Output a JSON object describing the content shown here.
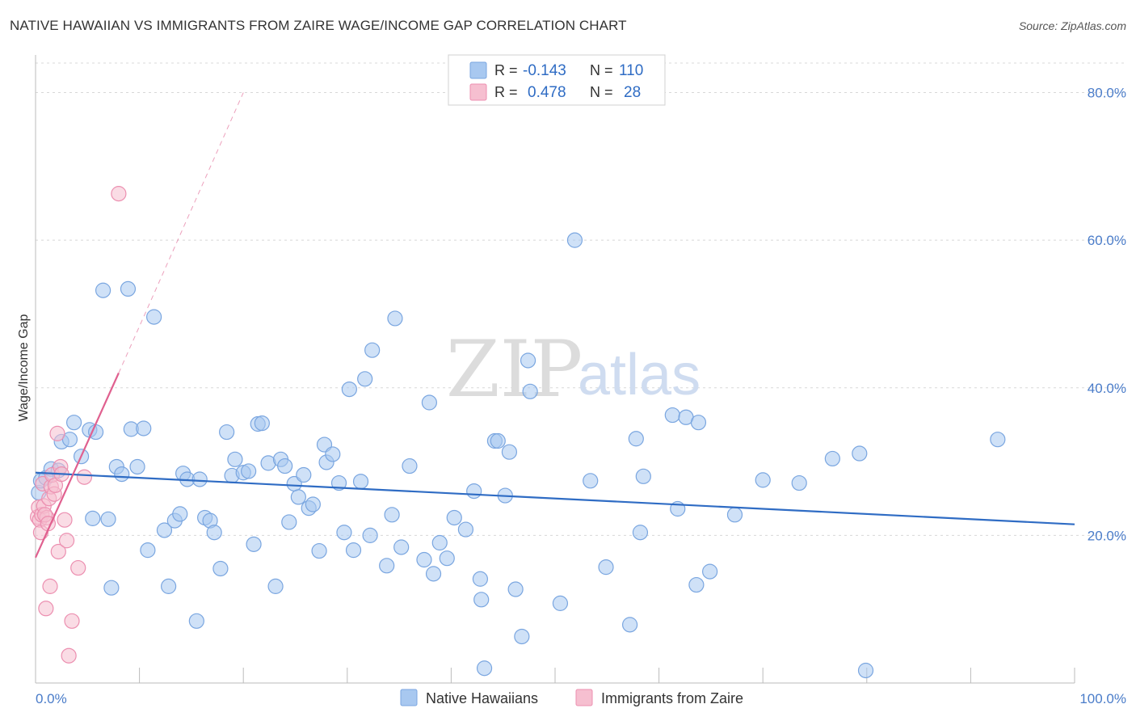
{
  "header": {
    "title": "NATIVE HAWAIIAN VS IMMIGRANTS FROM ZAIRE WAGE/INCOME GAP CORRELATION CHART",
    "source": "Source: ZipAtlas.com"
  },
  "watermark": {
    "zip": "ZIP",
    "atlas": "atlas"
  },
  "colors": {
    "blue_fill": "#a8c8f0",
    "blue_stroke": "#7aa6e0",
    "blue_line": "#2f6cc4",
    "pink_fill": "#f6bfd0",
    "pink_stroke": "#ec8fb0",
    "pink_line": "#e0608f",
    "grid": "#d8d8d8",
    "axis_label": "#4a7cc9"
  },
  "legend": {
    "rows": [
      {
        "r_label": "R =",
        "r_value": "-0.143",
        "n_label": "N =",
        "n_value": "110"
      },
      {
        "r_label": "R =",
        "r_value": "0.478",
        "n_label": "N =",
        "n_value": "28"
      }
    ]
  },
  "chart_data": {
    "type": "scatter",
    "title": "NATIVE HAWAIIAN VS IMMIGRANTS FROM ZAIRE WAGE/INCOME GAP CORRELATION CHART",
    "xlabel": "",
    "ylabel": "Wage/Income Gap",
    "xlim": [
      0,
      100
    ],
    "ylim": [
      0,
      84
    ],
    "x_tick_labels": [
      "0.0%",
      "100.0%"
    ],
    "y_ticks": [
      20,
      40,
      60,
      80
    ],
    "y_tick_labels": [
      "20.0%",
      "40.0%",
      "60.0%",
      "80.0%"
    ],
    "grid": true,
    "legend_placement": "top-center and bottom",
    "series": [
      {
        "name": "Native Hawaiians",
        "r": -0.143,
        "n": 110,
        "trend": {
          "x": [
            0,
            100
          ],
          "y": [
            28.5,
            21.5
          ]
        },
        "points": [
          [
            0.3,
            25.8
          ],
          [
            0.5,
            27.4
          ],
          [
            1.0,
            27.8
          ],
          [
            1.5,
            29.0
          ],
          [
            2.2,
            28.8
          ],
          [
            2.5,
            32.7
          ],
          [
            3.3,
            33.0
          ],
          [
            3.7,
            35.3
          ],
          [
            4.4,
            30.7
          ],
          [
            5.2,
            34.3
          ],
          [
            5.5,
            22.3
          ],
          [
            5.8,
            34.0
          ],
          [
            6.5,
            53.2
          ],
          [
            7.0,
            22.2
          ],
          [
            7.3,
            12.9
          ],
          [
            7.8,
            29.3
          ],
          [
            8.3,
            28.3
          ],
          [
            8.9,
            53.4
          ],
          [
            9.2,
            34.4
          ],
          [
            9.8,
            29.3
          ],
          [
            10.4,
            34.5
          ],
          [
            10.8,
            18.0
          ],
          [
            11.4,
            49.6
          ],
          [
            12.4,
            20.7
          ],
          [
            12.8,
            13.1
          ],
          [
            13.4,
            22.0
          ],
          [
            13.9,
            22.9
          ],
          [
            14.2,
            28.4
          ],
          [
            14.6,
            27.6
          ],
          [
            15.5,
            8.4
          ],
          [
            15.8,
            27.6
          ],
          [
            16.3,
            22.4
          ],
          [
            16.8,
            22.0
          ],
          [
            17.2,
            20.4
          ],
          [
            17.8,
            15.5
          ],
          [
            18.4,
            34.0
          ],
          [
            18.9,
            28.1
          ],
          [
            19.2,
            30.3
          ],
          [
            20.0,
            28.5
          ],
          [
            20.5,
            28.7
          ],
          [
            21.0,
            18.8
          ],
          [
            21.4,
            35.1
          ],
          [
            21.8,
            35.2
          ],
          [
            22.4,
            29.8
          ],
          [
            23.1,
            13.1
          ],
          [
            23.6,
            30.3
          ],
          [
            24.0,
            29.4
          ],
          [
            24.4,
            21.8
          ],
          [
            24.9,
            27.0
          ],
          [
            25.3,
            25.2
          ],
          [
            25.8,
            28.2
          ],
          [
            26.3,
            23.7
          ],
          [
            26.7,
            24.2
          ],
          [
            27.3,
            17.9
          ],
          [
            27.8,
            32.3
          ],
          [
            28.0,
            29.9
          ],
          [
            28.6,
            31.0
          ],
          [
            29.2,
            27.1
          ],
          [
            29.7,
            20.4
          ],
          [
            30.2,
            39.8
          ],
          [
            30.6,
            18.0
          ],
          [
            31.3,
            27.3
          ],
          [
            31.7,
            41.2
          ],
          [
            32.2,
            20.0
          ],
          [
            32.4,
            45.1
          ],
          [
            33.8,
            15.9
          ],
          [
            34.3,
            22.8
          ],
          [
            34.6,
            49.4
          ],
          [
            35.2,
            18.4
          ],
          [
            36.0,
            29.4
          ],
          [
            37.4,
            16.7
          ],
          [
            37.9,
            38.0
          ],
          [
            38.3,
            14.8
          ],
          [
            38.9,
            19.0
          ],
          [
            39.6,
            16.9
          ],
          [
            40.3,
            22.4
          ],
          [
            41.4,
            20.8
          ],
          [
            42.2,
            26.0
          ],
          [
            42.8,
            14.1
          ],
          [
            42.9,
            11.3
          ],
          [
            43.2,
            2.0
          ],
          [
            44.2,
            32.8
          ],
          [
            44.5,
            32.8
          ],
          [
            45.2,
            25.4
          ],
          [
            45.6,
            31.3
          ],
          [
            46.2,
            12.7
          ],
          [
            46.8,
            6.3
          ],
          [
            47.4,
            43.7
          ],
          [
            47.6,
            39.5
          ],
          [
            50.5,
            10.8
          ],
          [
            51.9,
            60.0
          ],
          [
            53.4,
            27.4
          ],
          [
            54.9,
            15.7
          ],
          [
            57.2,
            7.9
          ],
          [
            57.8,
            33.1
          ],
          [
            58.2,
            20.4
          ],
          [
            58.5,
            28.0
          ],
          [
            61.3,
            36.3
          ],
          [
            61.8,
            23.6
          ],
          [
            62.6,
            36.0
          ],
          [
            63.6,
            13.3
          ],
          [
            63.8,
            35.3
          ],
          [
            64.9,
            15.1
          ],
          [
            67.3,
            22.8
          ],
          [
            70.0,
            27.5
          ],
          [
            73.5,
            27.1
          ],
          [
            76.7,
            30.4
          ],
          [
            79.3,
            31.1
          ],
          [
            79.9,
            1.7
          ],
          [
            92.6,
            33.0
          ]
        ]
      },
      {
        "name": "Immigrants from Zaire",
        "r": 0.478,
        "n": 28,
        "trend": {
          "x": [
            0,
            8.0
          ],
          "y": [
            17.0,
            42.0
          ]
        },
        "trend_extension": {
          "x": [
            8.0,
            20.0
          ],
          "y": [
            42.0,
            80.0
          ]
        },
        "points": [
          [
            0.2,
            22.5
          ],
          [
            0.3,
            23.8
          ],
          [
            0.4,
            22.1
          ],
          [
            0.5,
            20.4
          ],
          [
            0.6,
            22.8
          ],
          [
            0.7,
            27.0
          ],
          [
            0.8,
            24.0
          ],
          [
            1.0,
            10.1
          ],
          [
            1.1,
            22.4
          ],
          [
            1.3,
            25.0
          ],
          [
            1.4,
            13.1
          ],
          [
            1.5,
            26.6
          ],
          [
            1.6,
            28.2
          ],
          [
            1.8,
            25.6
          ],
          [
            1.9,
            26.8
          ],
          [
            2.1,
            33.8
          ],
          [
            2.2,
            17.8
          ],
          [
            2.4,
            29.3
          ],
          [
            2.5,
            28.3
          ],
          [
            2.8,
            22.1
          ],
          [
            3.0,
            19.3
          ],
          [
            3.2,
            3.7
          ],
          [
            3.5,
            8.4
          ],
          [
            4.1,
            15.6
          ],
          [
            4.7,
            27.9
          ],
          [
            8.0,
            66.3
          ],
          [
            0.9,
            22.8
          ],
          [
            1.2,
            21.6
          ]
        ]
      }
    ]
  },
  "bottom_legend": [
    {
      "label": "Native Hawaiians"
    },
    {
      "label": "Immigrants from Zaire"
    }
  ]
}
